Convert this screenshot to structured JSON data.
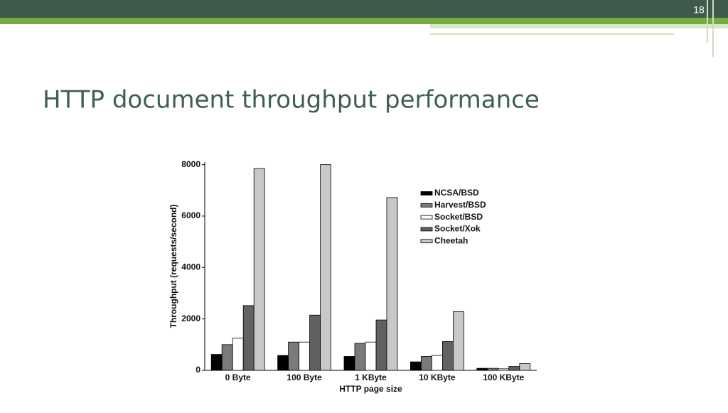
{
  "slide": {
    "number": 18,
    "title": "HTTP document throughput performance"
  },
  "chart_data": {
    "type": "bar",
    "x_label": "HTTP page size",
    "y_label": "Throughput (requests/second)",
    "categories": [
      "0 Byte",
      "100 Byte",
      "1 KByte",
      "10 KByte",
      "100 KByte"
    ],
    "series": [
      {
        "name": "NCSA/BSD",
        "color": "#000000",
        "values": [
          620,
          580,
          540,
          330,
          80
        ]
      },
      {
        "name": "Harvest/BSD",
        "color": "#7a7a7a",
        "values": [
          1000,
          1100,
          1050,
          540,
          80
        ]
      },
      {
        "name": "Socket/BSD",
        "color": "#ffffff",
        "values": [
          1250,
          1100,
          1100,
          580,
          60
        ]
      },
      {
        "name": "Socket/Xok",
        "color": "#616161",
        "values": [
          2520,
          2150,
          1960,
          1120,
          150
        ]
      },
      {
        "name": "Cheetah",
        "color": "#c8c8c8",
        "values": [
          7850,
          8000,
          6720,
          2280,
          260
        ]
      }
    ],
    "ylim": [
      0,
      8100
    ],
    "yticks": [
      0,
      2000,
      4000,
      6000,
      8000
    ],
    "legend": "upper right",
    "grid": false
  }
}
